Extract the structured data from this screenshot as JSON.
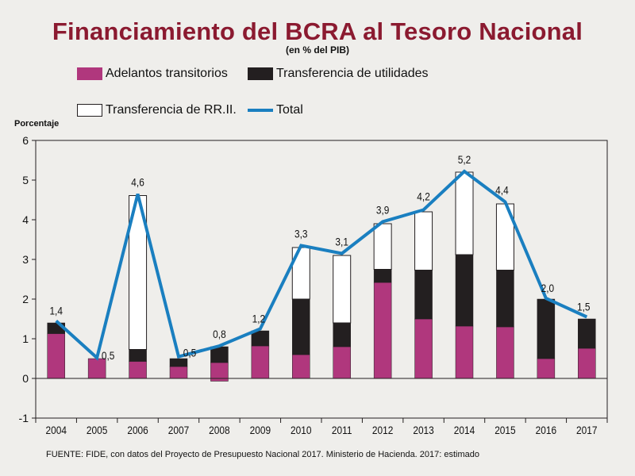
{
  "title": "Financiamiento del BCRA al Tesoro Nacional",
  "subtitle": "(en % del PIB)",
  "legend": {
    "adelantos": "Adelantos transitorios",
    "utilidades": "Transferencia de utilidades",
    "rrii": "Transferencia de RR.II.",
    "total": "Total"
  },
  "y_axis_title": "Porcentaje",
  "source": "FUENTE: FIDE, con datos del Proyecto de Presupuesto Nacional 2017. Ministerio de Hacienda. 2017: estimado",
  "colors": {
    "adelantos": "#b0377d",
    "utilidades": "#231f20",
    "rrii": "#ffffff",
    "total": "#1a7fc0",
    "title": "#8b1a30"
  },
  "chart_data": {
    "type": "bar",
    "stacked": true,
    "categories": [
      "2004",
      "2005",
      "2006",
      "2007",
      "2008",
      "2009",
      "2010",
      "2011",
      "2012",
      "2013",
      "2014",
      "2015",
      "2016",
      "2017"
    ],
    "series": [
      {
        "name": "Adelantos transitorios",
        "values": [
          1.13,
          0.5,
          0.43,
          0.3,
          0.4,
          0.82,
          0.6,
          0.8,
          2.42,
          1.5,
          1.32,
          1.3,
          0.5,
          0.76
        ]
      },
      {
        "name": "Transferencia de utilidades",
        "values": [
          0.27,
          0.0,
          0.3,
          0.2,
          0.4,
          0.38,
          1.4,
          0.6,
          0.33,
          1.23,
          1.8,
          1.43,
          1.5,
          0.74
        ]
      },
      {
        "name": "Transferencia de RR.II.",
        "values": [
          0.0,
          0.0,
          3.88,
          0.0,
          0.0,
          0.0,
          1.3,
          1.7,
          1.15,
          1.47,
          2.08,
          1.67,
          0.0,
          0.0
        ]
      },
      {
        "name": "Adelantos transitorios (negativo)",
        "values": [
          0,
          0,
          0,
          0,
          -0.07,
          0,
          0,
          0,
          0,
          0,
          0,
          0,
          0,
          0
        ]
      }
    ],
    "total": [
      1.45,
      0.52,
      4.65,
      0.55,
      0.82,
      1.25,
      3.35,
      3.15,
      3.95,
      4.25,
      5.22,
      4.45,
      2.02,
      1.55
    ],
    "total_labels": [
      "1,4",
      "0,5",
      "4,6",
      "0,5",
      "0,8",
      "1,2",
      "3,3",
      "3,1",
      "3,9",
      "4,2",
      "5,2",
      "4,4",
      "2,0",
      "1,5"
    ],
    "ylim": [
      -1,
      6
    ],
    "yticks": [
      -1,
      0,
      1,
      2,
      3,
      4,
      5,
      6
    ],
    "ylabel": "Porcentaje",
    "xlabel": ""
  }
}
